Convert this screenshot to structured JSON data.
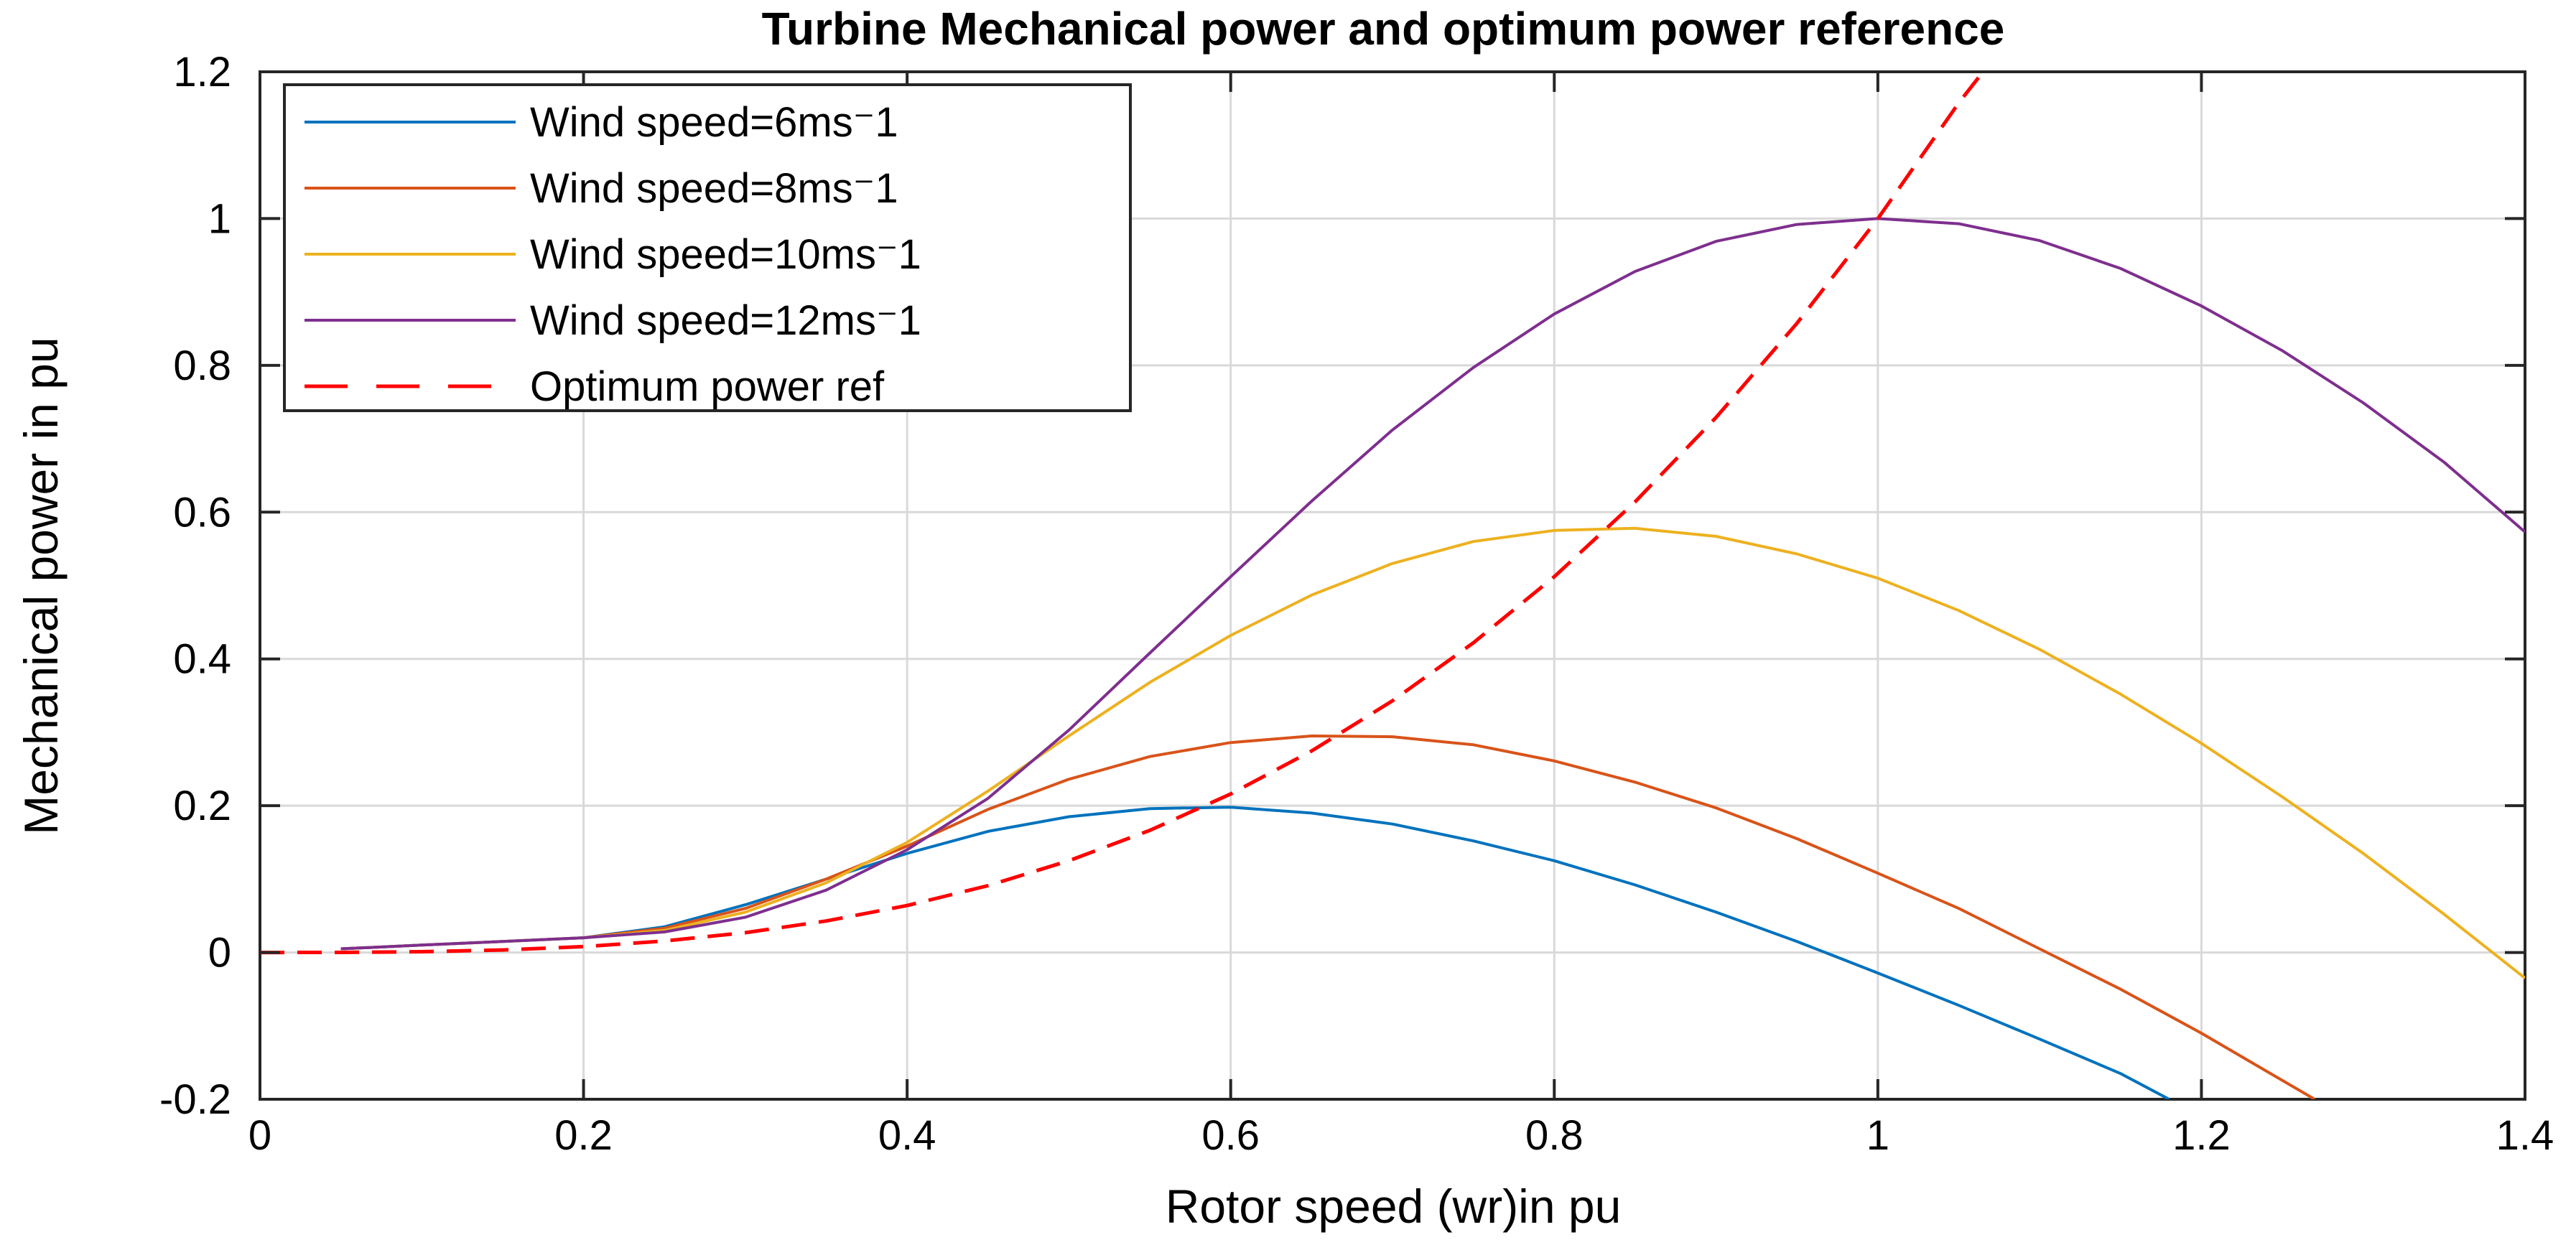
{
  "chart_data": {
    "type": "line",
    "title": "Turbine Mechanical power and optimum power reference",
    "xlabel": "Rotor speed (wr)in pu",
    "ylabel": "Mechanical power in pu",
    "xlim": [
      0,
      1.4
    ],
    "ylim": [
      -0.2,
      1.2
    ],
    "xticks": [
      0,
      0.2,
      0.4,
      0.6,
      0.8,
      1,
      1.2,
      1.4
    ],
    "xtick_labels": [
      "0",
      "0.2",
      "0.4",
      "0.6",
      "0.8",
      "1",
      "1.2",
      "1.4"
    ],
    "yticks": [
      -0.2,
      0,
      0.2,
      0.4,
      0.6,
      0.8,
      1,
      1.2
    ],
    "ytick_labels": [
      "-0.2",
      "0",
      "0.2",
      "0.4",
      "0.6",
      "0.8",
      "1",
      "1.2"
    ],
    "grid": true,
    "legend_position": "top-left",
    "series": [
      {
        "name": "Wind speed=6ms⁻1",
        "color": "#0072bd",
        "dash": "solid",
        "x": [
          0.05,
          0.1,
          0.15,
          0.2,
          0.25,
          0.3,
          0.35,
          0.4,
          0.45,
          0.5,
          0.55,
          0.6,
          0.65,
          0.7,
          0.75,
          0.8,
          0.85,
          0.9,
          0.95,
          1.0,
          1.05,
          1.1,
          1.15,
          1.18
        ],
        "y": [
          0.005,
          0.01,
          0.015,
          0.02,
          0.035,
          0.065,
          0.1,
          0.135,
          0.165,
          0.185,
          0.196,
          0.198,
          0.19,
          0.175,
          0.152,
          0.125,
          0.092,
          0.055,
          0.015,
          -0.028,
          -0.072,
          -0.118,
          -0.165,
          -0.2
        ]
      },
      {
        "name": "Wind speed=8ms⁻1",
        "color": "#d95319",
        "dash": "solid",
        "x": [
          0.05,
          0.1,
          0.15,
          0.2,
          0.25,
          0.3,
          0.35,
          0.4,
          0.45,
          0.5,
          0.55,
          0.6,
          0.65,
          0.7,
          0.75,
          0.8,
          0.85,
          0.9,
          0.95,
          1.0,
          1.05,
          1.1,
          1.15,
          1.2,
          1.27
        ],
        "y": [
          0.005,
          0.01,
          0.015,
          0.02,
          0.033,
          0.06,
          0.1,
          0.145,
          0.195,
          0.236,
          0.267,
          0.286,
          0.295,
          0.294,
          0.283,
          0.261,
          0.232,
          0.197,
          0.155,
          0.108,
          0.06,
          0.005,
          -0.05,
          -0.11,
          -0.2
        ]
      },
      {
        "name": "Wind speed=10ms⁻1",
        "color": "#edb120",
        "dash": "solid",
        "x": [
          0.05,
          0.1,
          0.15,
          0.2,
          0.25,
          0.3,
          0.35,
          0.4,
          0.45,
          0.5,
          0.55,
          0.6,
          0.65,
          0.7,
          0.75,
          0.8,
          0.85,
          0.9,
          0.95,
          1.0,
          1.05,
          1.1,
          1.15,
          1.2,
          1.25,
          1.3,
          1.35,
          1.4
        ],
        "y": [
          0.005,
          0.01,
          0.015,
          0.02,
          0.03,
          0.055,
          0.095,
          0.15,
          0.22,
          0.295,
          0.368,
          0.432,
          0.487,
          0.53,
          0.56,
          0.575,
          0.578,
          0.567,
          0.543,
          0.51,
          0.466,
          0.413,
          0.352,
          0.285,
          0.212,
          0.135,
          0.052,
          -0.035
        ]
      },
      {
        "name": "Wind speed=12ms⁻1",
        "color": "#7e2f8e",
        "dash": "solid",
        "x": [
          0.05,
          0.1,
          0.15,
          0.2,
          0.25,
          0.3,
          0.35,
          0.4,
          0.45,
          0.5,
          0.55,
          0.6,
          0.65,
          0.7,
          0.75,
          0.8,
          0.85,
          0.9,
          0.95,
          1.0,
          1.05,
          1.1,
          1.15,
          1.2,
          1.25,
          1.3,
          1.35,
          1.4
        ],
        "y": [
          0.005,
          0.01,
          0.015,
          0.02,
          0.028,
          0.048,
          0.085,
          0.14,
          0.21,
          0.303,
          0.408,
          0.512,
          0.615,
          0.712,
          0.797,
          0.87,
          0.928,
          0.969,
          0.992,
          1.0,
          0.993,
          0.97,
          0.932,
          0.881,
          0.82,
          0.749,
          0.668,
          0.573
        ]
      },
      {
        "name": "Optimum power ref",
        "color": "#ff0000",
        "dash": "dashed",
        "x": [
          0,
          0.05,
          0.1,
          0.15,
          0.2,
          0.25,
          0.3,
          0.35,
          0.4,
          0.45,
          0.5,
          0.55,
          0.6,
          0.65,
          0.7,
          0.75,
          0.8,
          0.85,
          0.9,
          0.95,
          1.0,
          1.05,
          1.065
        ],
        "y": [
          0,
          0.0001,
          0.001,
          0.0034,
          0.008,
          0.0156,
          0.027,
          0.0429,
          0.064,
          0.0911,
          0.125,
          0.1664,
          0.216,
          0.2746,
          0.343,
          0.4219,
          0.512,
          0.6141,
          0.729,
          0.8574,
          1.0,
          1.1576,
          1.2
        ]
      }
    ]
  }
}
